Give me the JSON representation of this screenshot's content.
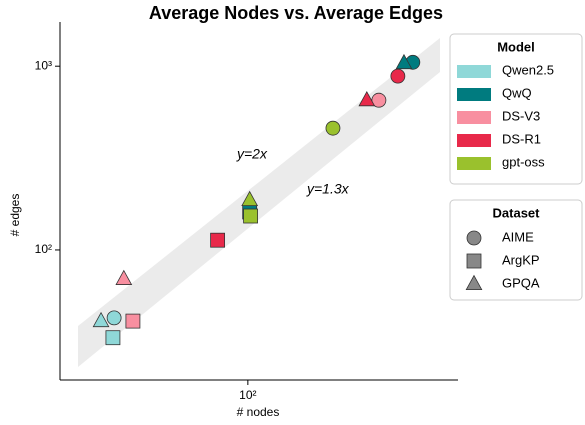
{
  "chart_data": {
    "type": "scatter",
    "title": "Average Nodes vs. Average Edges",
    "x_label": "# nodes",
    "y_label": "# edges",
    "log_x": true,
    "log_y": true,
    "xlim": [
      13,
      980
    ],
    "ylim": [
      19.6,
      1740
    ],
    "xticks": [
      {
        "value": 100,
        "label": "10²"
      }
    ],
    "yticks": [
      {
        "value": 100,
        "label": "10²"
      },
      {
        "value": 1000,
        "label": "10³"
      }
    ],
    "annotations": [
      "y=2x",
      "y=1.3x"
    ],
    "legend_title": "Model",
    "dataset_legend_title": "Dataset",
    "datasets": [
      {
        "name": "AIME",
        "marker": "circle"
      },
      {
        "name": "ArgKP",
        "marker": "square"
      },
      {
        "name": "GPQA",
        "marker": "triangle"
      }
    ],
    "series": [
      {
        "name": "Qwen2.5",
        "color": "#8fd8d8",
        "x": [
          23.4,
          23.1,
          20.3
        ],
        "values": [
          42.7,
          33.3,
          41
        ]
      },
      {
        "name": "QwQ",
        "color": "#007b7f",
        "x": [
          600,
          102,
          545
        ],
        "values": [
          1050,
          161,
          1040
        ]
      },
      {
        "name": "DS-V3",
        "color": "#f88fa0",
        "x": [
          415,
          28.7,
          26
        ],
        "values": [
          653,
          41,
          69.5
        ]
      },
      {
        "name": "DS-R1",
        "color": "#e8294a",
        "x": [
          510,
          72,
          364
        ],
        "values": [
          883,
          113,
          653
        ]
      },
      {
        "name": "gpt-oss",
        "color": "#9ac12d",
        "x": [
          252,
          103,
          102
        ],
        "values": [
          460,
          153,
          187
        ]
      }
    ]
  }
}
